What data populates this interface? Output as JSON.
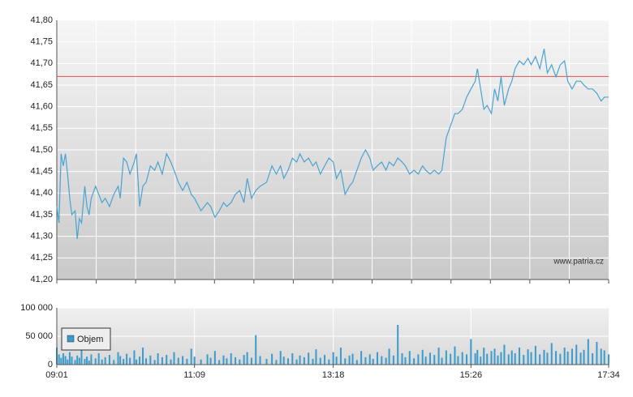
{
  "chart_data": [
    {
      "type": "line",
      "xlim": [
        "09:01",
        "17:34"
      ],
      "ylim": [
        41.2,
        41.8
      ],
      "yticks": [
        {
          "value": 41.2,
          "label": "41,20"
        },
        {
          "value": 41.25,
          "label": "41,25"
        },
        {
          "value": 41.3,
          "label": "41,30"
        },
        {
          "value": 41.35,
          "label": "41,35"
        },
        {
          "value": 41.4,
          "label": "41,40"
        },
        {
          "value": 41.45,
          "label": "41,45"
        },
        {
          "value": 41.5,
          "label": "41,50"
        },
        {
          "value": 41.55,
          "label": "41,55"
        },
        {
          "value": 41.6,
          "label": "41,60"
        },
        {
          "value": 41.65,
          "label": "41,65"
        },
        {
          "value": 41.7,
          "label": "41,70"
        },
        {
          "value": 41.75,
          "label": "41,75"
        },
        {
          "value": 41.8,
          "label": "41,80"
        }
      ],
      "grid": true,
      "reference_line": 41.67,
      "reference_color": "#d9534f",
      "watermark": "www.patria.cz",
      "x": [
        "09:01",
        "09:03",
        "09:05",
        "09:07",
        "09:09",
        "09:11",
        "09:13",
        "09:15",
        "09:18",
        "09:20",
        "09:22",
        "09:24",
        "09:27",
        "09:29",
        "09:31",
        "09:33",
        "09:37",
        "09:40",
        "09:43",
        "09:46",
        "09:50",
        "09:54",
        "09:58",
        "10:00",
        "10:03",
        "10:06",
        "10:09",
        "10:13",
        "10:15",
        "10:18",
        "10:21",
        "10:24",
        "10:28",
        "10:32",
        "10:35",
        "10:39",
        "10:43",
        "10:47",
        "10:50",
        "10:54",
        "10:58",
        "11:02",
        "11:06",
        "11:09",
        "11:15",
        "11:21",
        "11:24",
        "11:28",
        "11:32",
        "11:36",
        "11:39",
        "11:43",
        "11:47",
        "11:51",
        "11:55",
        "11:58",
        "12:02",
        "12:06",
        "12:10",
        "12:16",
        "12:21",
        "12:25",
        "12:29",
        "12:32",
        "12:36",
        "12:40",
        "12:44",
        "12:47",
        "12:51",
        "12:55",
        "12:59",
        "13:02",
        "13:06",
        "13:10",
        "13:14",
        "13:18",
        "13:21",
        "13:25",
        "13:29",
        "13:33",
        "13:36",
        "13:40",
        "13:44",
        "13:48",
        "13:52",
        "13:55",
        "13:59",
        "14:03",
        "14:07",
        "14:10",
        "14:14",
        "14:18",
        "14:22",
        "14:25",
        "14:29",
        "14:33",
        "14:37",
        "14:41",
        "14:44",
        "14:48",
        "14:52",
        "14:56",
        "14:59",
        "15:03",
        "15:07",
        "15:11",
        "15:14",
        "15:18",
        "15:22",
        "15:26",
        "15:30",
        "15:32",
        "15:35",
        "15:38",
        "15:41",
        "15:45",
        "15:48",
        "15:51",
        "15:54",
        "15:57",
        "16:01",
        "16:04",
        "16:07",
        "16:11",
        "16:15",
        "16:19",
        "16:22",
        "16:26",
        "16:30",
        "16:34",
        "16:37",
        "16:41",
        "16:45",
        "16:49",
        "16:53",
        "16:56",
        "17:00",
        "17:04",
        "17:08",
        "17:11",
        "17:15",
        "17:19",
        "17:23",
        "17:27",
        "17:30",
        "17:34"
      ],
      "series": [
        {
          "color": "#4aa3d0",
          "values": [
            41.369,
            41.331,
            41.491,
            41.463,
            41.491,
            41.444,
            41.388,
            41.35,
            41.359,
            41.294,
            41.341,
            41.331,
            41.416,
            41.369,
            41.35,
            41.388,
            41.416,
            41.397,
            41.378,
            41.388,
            41.369,
            41.397,
            41.416,
            41.388,
            41.481,
            41.472,
            41.444,
            41.472,
            41.491,
            41.369,
            41.416,
            41.425,
            41.463,
            41.453,
            41.472,
            41.444,
            41.491,
            41.472,
            41.453,
            41.425,
            41.406,
            41.425,
            41.397,
            41.388,
            41.359,
            41.378,
            41.369,
            41.344,
            41.359,
            41.378,
            41.369,
            41.378,
            41.397,
            41.406,
            41.378,
            41.434,
            41.388,
            41.406,
            41.416,
            41.425,
            41.463,
            41.444,
            41.463,
            41.434,
            41.453,
            41.481,
            41.472,
            41.491,
            41.472,
            41.481,
            41.463,
            41.472,
            41.444,
            41.463,
            41.481,
            41.472,
            41.434,
            41.453,
            41.397,
            41.416,
            41.425,
            41.453,
            41.481,
            41.5,
            41.481,
            41.453,
            41.463,
            41.472,
            41.453,
            41.472,
            41.463,
            41.481,
            41.472,
            41.463,
            41.444,
            41.453,
            41.444,
            41.463,
            41.453,
            41.444,
            41.453,
            41.444,
            41.453,
            41.528,
            41.556,
            41.584,
            41.584,
            41.594,
            41.622,
            41.641,
            41.659,
            41.688,
            41.641,
            41.594,
            41.603,
            41.584,
            41.641,
            41.613,
            41.669,
            41.603,
            41.641,
            41.659,
            41.688,
            41.706,
            41.697,
            41.712,
            41.697,
            41.716,
            41.688,
            41.734,
            41.678,
            41.697,
            41.669,
            41.697,
            41.706,
            41.659,
            41.641,
            41.659,
            41.659,
            41.65,
            41.641,
            41.641,
            41.631,
            41.613,
            41.622,
            41.622
          ]
        }
      ]
    },
    {
      "type": "bar",
      "xlim": [
        "09:01",
        "17:34"
      ],
      "xticks": [
        "09:01",
        "11:09",
        "13:18",
        "15:26",
        "17:34"
      ],
      "ylim": [
        0,
        100000
      ],
      "yticks": [
        0,
        {
          "value": 50000,
          "label": "50 000"
        },
        {
          "value": 100000,
          "label": "100 000"
        }
      ],
      "grid": true,
      "legend": "top-left",
      "x": [
        "09:01",
        "09:03",
        "09:05",
        "09:07",
        "09:09",
        "09:11",
        "09:13",
        "09:15",
        "09:18",
        "09:20",
        "09:22",
        "09:24",
        "09:27",
        "09:29",
        "09:31",
        "09:33",
        "09:37",
        "09:40",
        "09:43",
        "09:46",
        "09:50",
        "09:54",
        "09:58",
        "10:00",
        "10:03",
        "10:06",
        "10:09",
        "10:13",
        "10:15",
        "10:18",
        "10:21",
        "10:24",
        "10:28",
        "10:32",
        "10:35",
        "10:39",
        "10:43",
        "10:47",
        "10:50",
        "10:54",
        "10:58",
        "11:02",
        "11:06",
        "11:09",
        "11:15",
        "11:21",
        "11:24",
        "11:28",
        "11:32",
        "11:36",
        "11:39",
        "11:43",
        "11:47",
        "11:51",
        "11:55",
        "11:58",
        "12:02",
        "12:06",
        "12:10",
        "12:16",
        "12:21",
        "12:25",
        "12:29",
        "12:32",
        "12:36",
        "12:40",
        "12:44",
        "12:47",
        "12:51",
        "12:55",
        "12:59",
        "13:02",
        "13:06",
        "13:10",
        "13:14",
        "13:18",
        "13:21",
        "13:25",
        "13:29",
        "13:33",
        "13:36",
        "13:40",
        "13:44",
        "13:48",
        "13:52",
        "13:55",
        "13:59",
        "14:03",
        "14:07",
        "14:10",
        "14:14",
        "14:18",
        "14:22",
        "14:25",
        "14:29",
        "14:33",
        "14:37",
        "14:41",
        "14:44",
        "14:48",
        "14:52",
        "14:56",
        "14:59",
        "15:03",
        "15:07",
        "15:11",
        "15:14",
        "15:18",
        "15:22",
        "15:26",
        "15:30",
        "15:32",
        "15:35",
        "15:38",
        "15:41",
        "15:45",
        "15:48",
        "15:51",
        "15:54",
        "15:57",
        "16:01",
        "16:04",
        "16:07",
        "16:11",
        "16:15",
        "16:19",
        "16:22",
        "16:26",
        "16:30",
        "16:34",
        "16:37",
        "16:41",
        "16:45",
        "16:49",
        "16:53",
        "16:56",
        "17:00",
        "17:04",
        "17:08",
        "17:11",
        "17:15",
        "17:19",
        "17:23",
        "17:27",
        "17:30",
        "17:34"
      ],
      "series": [
        {
          "name": "Objem",
          "color": "#3a9ccc",
          "values": [
            30000,
            18000,
            12000,
            20000,
            15000,
            9000,
            22000,
            14000,
            8000,
            16000,
            12000,
            25000,
            10000,
            14000,
            7000,
            18000,
            11000,
            20000,
            9000,
            13000,
            17000,
            8000,
            22000,
            15000,
            10000,
            19000,
            12000,
            25000,
            9000,
            14000,
            30000,
            11000,
            16000,
            8000,
            20000,
            13000,
            17000,
            9000,
            22000,
            12000,
            15000,
            10000,
            28000,
            14000,
            9000,
            18000,
            12000,
            24000,
            8000,
            16000,
            11000,
            20000,
            13000,
            9000,
            17000,
            22000,
            12000,
            52000,
            15000,
            10000,
            19000,
            8000,
            24000,
            14000,
            11000,
            20000,
            9000,
            16000,
            13000,
            21000,
            10000,
            27000,
            12000,
            17000,
            9000,
            22000,
            14000,
            30000,
            11000,
            16000,
            19000,
            8000,
            24000,
            13000,
            18000,
            10000,
            22000,
            15000,
            12000,
            28000,
            16000,
            70000,
            20000,
            13000,
            24000,
            11000,
            18000,
            26000,
            14000,
            21000,
            17000,
            30000,
            12000,
            25000,
            19000,
            32000,
            15000,
            22000,
            18000,
            45000,
            20000,
            26000,
            14000,
            30000,
            19000,
            24000,
            28000,
            16000,
            22000,
            35000,
            18000,
            25000,
            20000,
            30000,
            17000,
            27000,
            22000,
            33000,
            18000,
            26000,
            21000,
            38000,
            24000,
            19000,
            30000,
            23000,
            28000,
            35000,
            21000,
            26000,
            45000,
            20000,
            40000,
            28000,
            25000,
            18000
          ]
        }
      ]
    }
  ]
}
